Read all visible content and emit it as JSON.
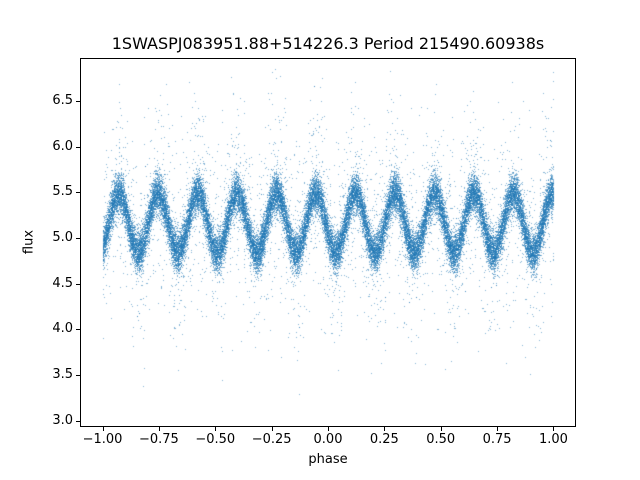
{
  "chart_data": {
    "type": "scatter",
    "title": "1SWASPJ083951.88+514226.3 Period 215490.60938s",
    "xlabel": "phase",
    "ylabel": "flux",
    "xlim": [
      -1.1,
      1.1
    ],
    "ylim": [
      2.93,
      6.97
    ],
    "x_ticks": [
      -1.0,
      -0.75,
      -0.5,
      -0.25,
      0.0,
      0.25,
      0.5,
      0.75,
      1.0
    ],
    "x_tick_labels": [
      "−1.00",
      "−0.75",
      "−0.50",
      "−0.25",
      "0.00",
      "0.25",
      "0.50",
      "0.75",
      "1.00"
    ],
    "y_ticks": [
      3.0,
      3.5,
      4.0,
      4.5,
      5.0,
      5.5,
      6.0,
      6.5
    ],
    "y_tick_labels": [
      "3.0",
      "3.5",
      "4.0",
      "4.5",
      "5.0",
      "5.5",
      "6.0",
      "6.5"
    ],
    "grid": false,
    "legend": "none",
    "marker_color": "#1f77b4",
    "marker_alpha": 0.55,
    "marker_size_px": 1,
    "n_points": 40000,
    "model": {
      "description": "Phase-folded SuperWASP light curve: flux oscillates quasi-sinusoidally about the baseline, producing ~12 dense maxima blobs near flux 5.5 and a denser minima band near flux 4.85 across phase -1 to 1, with a heavy-tailed halo of outliers spanning flux ~3.0 to ~6.8",
      "phase_range": [
        -1.0,
        1.0
      ],
      "mean_flux": 5.17,
      "amplitude": 0.33,
      "cycles_per_phase_unit": 5.714,
      "phase_of_maximum": 0.12,
      "core_sigma": 0.11,
      "outlier_fraction": 0.08,
      "outlier_sigma": 0.55,
      "flux_range_observed": [
        3.0,
        6.8
      ],
      "seed": 42
    }
  }
}
